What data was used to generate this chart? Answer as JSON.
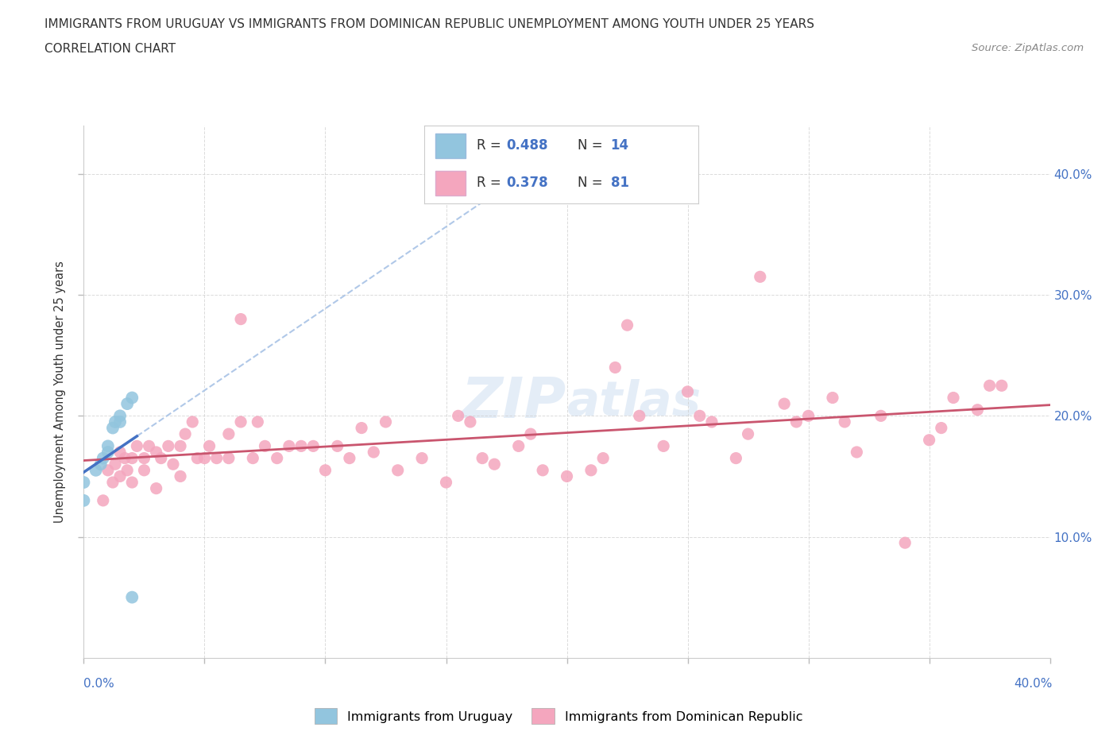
{
  "title_line1": "IMMIGRANTS FROM URUGUAY VS IMMIGRANTS FROM DOMINICAN REPUBLIC UNEMPLOYMENT AMONG YOUTH UNDER 25 YEARS",
  "title_line2": "CORRELATION CHART",
  "source_text": "Source: ZipAtlas.com",
  "ylabel": "Unemployment Among Youth under 25 years",
  "xlim": [
    0.0,
    0.4
  ],
  "ylim": [
    0.0,
    0.44
  ],
  "xticks": [
    0.0,
    0.05,
    0.1,
    0.15,
    0.2,
    0.25,
    0.3,
    0.35,
    0.4
  ],
  "yticks": [
    0.1,
    0.2,
    0.3,
    0.4
  ],
  "legend_label1": "Immigrants from Uruguay",
  "legend_label2": "Immigrants from Dominican Republic",
  "color_uruguay": "#92c5de",
  "color_dominican": "#f4a6be",
  "trend_color_uruguay": "#4472c4",
  "trend_color_dominican": "#c9556e",
  "trend_dash_color": "#b0c8e8",
  "grid_color": "#cccccc",
  "background_color": "#ffffff",
  "watermark_text": "ZIPAtlas",
  "r_uruguay": 0.488,
  "n_uruguay": 14,
  "r_dominican": 0.378,
  "n_dominican": 81,
  "uru_x": [
    0.0,
    0.0,
    0.005,
    0.007,
    0.008,
    0.01,
    0.01,
    0.012,
    0.013,
    0.015,
    0.015,
    0.018,
    0.02,
    0.02
  ],
  "uru_y": [
    0.13,
    0.145,
    0.155,
    0.16,
    0.165,
    0.17,
    0.175,
    0.19,
    0.195,
    0.2,
    0.195,
    0.21,
    0.05,
    0.215
  ],
  "dom_x": [
    0.008,
    0.01,
    0.012,
    0.013,
    0.015,
    0.015,
    0.017,
    0.018,
    0.02,
    0.02,
    0.022,
    0.025,
    0.025,
    0.027,
    0.03,
    0.03,
    0.032,
    0.035,
    0.037,
    0.04,
    0.04,
    0.042,
    0.045,
    0.047,
    0.05,
    0.052,
    0.055,
    0.06,
    0.06,
    0.065,
    0.065,
    0.07,
    0.072,
    0.075,
    0.08,
    0.085,
    0.09,
    0.095,
    0.1,
    0.105,
    0.11,
    0.115,
    0.12,
    0.125,
    0.13,
    0.14,
    0.15,
    0.155,
    0.16,
    0.165,
    0.17,
    0.18,
    0.185,
    0.19,
    0.2,
    0.21,
    0.215,
    0.22,
    0.225,
    0.23,
    0.24,
    0.25,
    0.255,
    0.26,
    0.27,
    0.275,
    0.28,
    0.29,
    0.295,
    0.3,
    0.31,
    0.315,
    0.32,
    0.33,
    0.34,
    0.35,
    0.355,
    0.36,
    0.37,
    0.375,
    0.38
  ],
  "dom_y": [
    0.13,
    0.155,
    0.145,
    0.16,
    0.15,
    0.17,
    0.165,
    0.155,
    0.165,
    0.145,
    0.175,
    0.165,
    0.155,
    0.175,
    0.14,
    0.17,
    0.165,
    0.175,
    0.16,
    0.15,
    0.175,
    0.185,
    0.195,
    0.165,
    0.165,
    0.175,
    0.165,
    0.165,
    0.185,
    0.28,
    0.195,
    0.165,
    0.195,
    0.175,
    0.165,
    0.175,
    0.175,
    0.175,
    0.155,
    0.175,
    0.165,
    0.19,
    0.17,
    0.195,
    0.155,
    0.165,
    0.145,
    0.2,
    0.195,
    0.165,
    0.16,
    0.175,
    0.185,
    0.155,
    0.15,
    0.155,
    0.165,
    0.24,
    0.275,
    0.2,
    0.175,
    0.22,
    0.2,
    0.195,
    0.165,
    0.185,
    0.315,
    0.21,
    0.195,
    0.2,
    0.215,
    0.195,
    0.17,
    0.2,
    0.095,
    0.18,
    0.19,
    0.215,
    0.205,
    0.225,
    0.225
  ]
}
